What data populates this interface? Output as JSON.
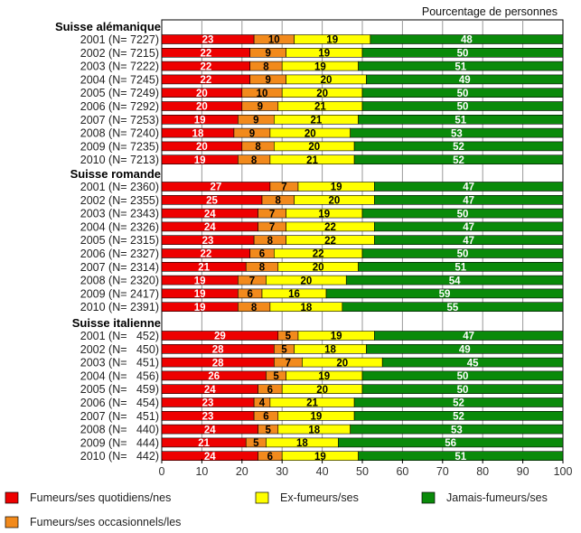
{
  "header": "Pourcentage de personnes",
  "colors": {
    "daily": "#ee0000",
    "occasional": "#f28a1c",
    "former": "#ffff00",
    "never": "#0a8a0a"
  },
  "legend": {
    "daily": "Fumeurs/ses quotidiens/nes",
    "occasional": "Fumeurs/ses occasionnels/les",
    "former": "Ex-fumeurs/ses",
    "never": "Jamais-fumeurs/ses"
  },
  "chart_data": {
    "type": "bar",
    "orientation": "horizontal",
    "stacked": true,
    "xlim": [
      0,
      100
    ],
    "xticks": [
      "0",
      "10",
      "20",
      "30",
      "40",
      "50",
      "60",
      "70",
      "80",
      "90",
      "100"
    ],
    "series_names": [
      "Fumeurs/ses quotidiens/nes",
      "Fumeurs/ses occasionnels/les",
      "Ex-fumeurs/ses",
      "Jamais-fumeurs/ses"
    ],
    "groups": [
      {
        "name": "Suisse alémanique",
        "rows": [
          {
            "label": "2001 (N= 7227)",
            "values": [
              23,
              10,
              19,
              48
            ]
          },
          {
            "label": "2002 (N= 7215)",
            "values": [
              22,
              9,
              19,
              50
            ]
          },
          {
            "label": "2003 (N= 7222)",
            "values": [
              22,
              8,
              19,
              51
            ]
          },
          {
            "label": "2004 (N= 7245)",
            "values": [
              22,
              9,
              20,
              49
            ]
          },
          {
            "label": "2005 (N= 7249)",
            "values": [
              20,
              10,
              20,
              50
            ]
          },
          {
            "label": "2006 (N= 7292)",
            "values": [
              20,
              9,
              21,
              50
            ]
          },
          {
            "label": "2007 (N= 7253)",
            "values": [
              19,
              9,
              21,
              51
            ]
          },
          {
            "label": "2008 (N= 7240)",
            "values": [
              18,
              9,
              20,
              53
            ]
          },
          {
            "label": "2009 (N= 7235)",
            "values": [
              20,
              8,
              20,
              52
            ]
          },
          {
            "label": "2010 (N= 7213)",
            "values": [
              19,
              8,
              21,
              52
            ]
          }
        ]
      },
      {
        "name": "Suisse romande",
        "rows": [
          {
            "label": "2001 (N= 2360)",
            "values": [
              27,
              7,
              19,
              47
            ]
          },
          {
            "label": "2002 (N= 2355)",
            "values": [
              25,
              8,
              20,
              47
            ]
          },
          {
            "label": "2003 (N= 2343)",
            "values": [
              24,
              7,
              19,
              50
            ]
          },
          {
            "label": "2004 (N= 2326)",
            "values": [
              24,
              7,
              22,
              47
            ]
          },
          {
            "label": "2005 (N= 2315)",
            "values": [
              23,
              8,
              22,
              47
            ]
          },
          {
            "label": "2006 (N= 2327)",
            "values": [
              22,
              6,
              22,
              50
            ]
          },
          {
            "label": "2007 (N= 2314)",
            "values": [
              21,
              8,
              20,
              51
            ]
          },
          {
            "label": "2008 (N= 2320)",
            "values": [
              19,
              7,
              20,
              54
            ]
          },
          {
            "label": "2009 (N= 2417)",
            "values": [
              19,
              6,
              16,
              59
            ]
          },
          {
            "label": "2010 (N= 2391)",
            "values": [
              19,
              8,
              18,
              55
            ]
          }
        ]
      },
      {
        "name": "Suisse italienne",
        "rows": [
          {
            "label": "2001 (N=   452)",
            "values": [
              29,
              5,
              19,
              47
            ]
          },
          {
            "label": "2002 (N=   450)",
            "values": [
              28,
              5,
              18,
              49
            ]
          },
          {
            "label": "2003 (N=   451)",
            "values": [
              28,
              7,
              20,
              45
            ]
          },
          {
            "label": "2004 (N=   456)",
            "values": [
              26,
              5,
              19,
              50
            ]
          },
          {
            "label": "2005 (N=   459)",
            "values": [
              24,
              6,
              20,
              50
            ]
          },
          {
            "label": "2006 (N=   454)",
            "values": [
              23,
              4,
              21,
              52
            ]
          },
          {
            "label": "2007 (N=   451)",
            "values": [
              23,
              6,
              19,
              52
            ]
          },
          {
            "label": "2008 (N=   440)",
            "values": [
              24,
              5,
              18,
              53
            ]
          },
          {
            "label": "2009 (N=   444)",
            "values": [
              21,
              5,
              18,
              56
            ]
          },
          {
            "label": "2010 (N=   442)",
            "values": [
              24,
              6,
              19,
              51
            ]
          }
        ]
      }
    ]
  }
}
